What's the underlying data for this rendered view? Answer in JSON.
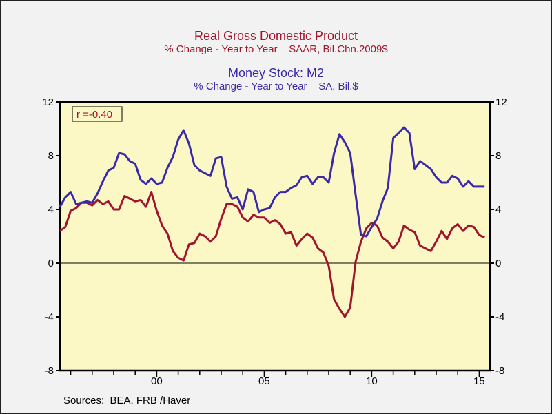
{
  "chart_data": {
    "type": "line",
    "titles": [
      {
        "text": "Real Gross Domestic Product",
        "subtitle": "% Change - Year to Year    SAAR, Bil.Chn.2009$"
      },
      {
        "text": "Money Stock: M2",
        "subtitle": "% Change - Year to Year    SA, Bil.$"
      }
    ],
    "x_start": "1995Q3",
    "frequency": "quarterly",
    "x_ticks": [
      "00",
      "05",
      "10",
      "15"
    ],
    "x_tick_years": [
      2000,
      2005,
      2010,
      2015
    ],
    "xlim": [
      1995.5,
      2015.5
    ],
    "ylim": [
      -8,
      12
    ],
    "y_ticks": [
      12,
      8,
      4,
      0,
      -4,
      -8
    ],
    "y_tick_labels": [
      "12",
      "8",
      "4",
      "0",
      "-4",
      "-8"
    ],
    "zero_line": true,
    "grid": false,
    "annotation": "r =-0.40",
    "series": [
      {
        "color": "#a0142c",
        "values": [
          2.4,
          2.7,
          3.9,
          4.1,
          4.5,
          4.5,
          4.3,
          4.7,
          4.4,
          4.6,
          4.0,
          4.0,
          5.0,
          4.8,
          4.6,
          4.7,
          4.2,
          5.3,
          3.9,
          2.8,
          2.2,
          0.9,
          0.4,
          0.2,
          1.4,
          1.5,
          2.2,
          2.0,
          1.6,
          2.0,
          3.3,
          4.4,
          4.4,
          4.2,
          3.4,
          3.1,
          3.6,
          3.4,
          3.4,
          3.0,
          3.2,
          2.9,
          2.2,
          2.3,
          1.3,
          1.8,
          2.2,
          1.9,
          1.1,
          0.8,
          -0.2,
          -2.7,
          -3.4,
          -4.0,
          -3.3,
          0.1,
          1.6,
          2.6,
          3.0,
          2.8,
          1.9,
          1.6,
          1.1,
          1.6,
          2.8,
          2.5,
          2.3,
          1.3,
          1.1,
          0.9,
          1.6,
          2.4,
          1.8,
          2.6,
          2.9,
          2.4,
          2.8,
          2.7,
          2.1,
          1.9
        ]
      },
      {
        "color": "#3b2aa8",
        "values": [
          4.2,
          4.9,
          5.3,
          4.4,
          4.5,
          4.6,
          4.5,
          5.2,
          6.1,
          6.9,
          7.1,
          8.2,
          8.1,
          7.6,
          7.4,
          6.2,
          5.9,
          6.3,
          5.9,
          6.0,
          7.1,
          7.9,
          9.2,
          9.9,
          8.9,
          7.3,
          6.9,
          6.7,
          6.5,
          7.8,
          7.9,
          5.7,
          4.8,
          4.9,
          4.0,
          5.5,
          5.3,
          3.8,
          4.0,
          4.1,
          4.9,
          5.3,
          5.3,
          5.6,
          5.8,
          6.4,
          6.5,
          5.9,
          6.4,
          6.4,
          6.0,
          8.2,
          9.6,
          9.0,
          8.2,
          5.1,
          2.1,
          2.0,
          2.7,
          3.3,
          4.6,
          5.6,
          9.3,
          9.7,
          10.1,
          9.7,
          7.0,
          7.6,
          7.3,
          7.0,
          6.4,
          6.0,
          6.0,
          6.5,
          6.3,
          5.7,
          6.1,
          5.7,
          5.7,
          5.7
        ]
      }
    ]
  },
  "footer": {
    "sources": "Sources:  BEA, FRB /Haver"
  }
}
